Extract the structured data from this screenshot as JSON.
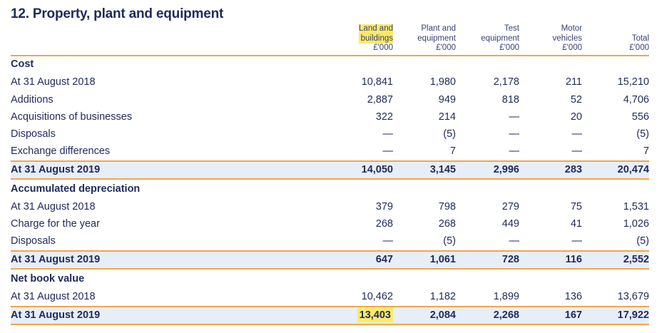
{
  "title": "12. Property, plant and equipment",
  "columns": [
    {
      "lines": [
        "Land and",
        "buildings",
        "£'000"
      ],
      "highlight": true
    },
    {
      "lines": [
        "Plant and",
        "equipment",
        "£'000"
      ],
      "highlight": false
    },
    {
      "lines": [
        "Test",
        "equipment",
        "£'000"
      ],
      "highlight": false
    },
    {
      "lines": [
        "Motor",
        "vehicles",
        "£'000"
      ],
      "highlight": false
    },
    {
      "lines": [
        "Total",
        "£'000"
      ],
      "highlight": false
    }
  ],
  "colors": {
    "text": "#1f2a5a",
    "rule": "#f0a64c",
    "total_bg": "#e8eef8",
    "highlight": "#fbea68"
  },
  "rows": [
    {
      "type": "section",
      "label": "Cost",
      "values": []
    },
    {
      "type": "normal",
      "label": "At 31 August 2018",
      "values": [
        "10,841",
        "1,980",
        "2,178",
        "211",
        "15,210"
      ]
    },
    {
      "type": "normal",
      "label": "Additions",
      "values": [
        "2,887",
        "949",
        "818",
        "52",
        "4,706"
      ]
    },
    {
      "type": "normal",
      "label": "Acquisitions of businesses",
      "values": [
        "322",
        "214",
        "—",
        "20",
        "556"
      ]
    },
    {
      "type": "normal",
      "label": "Disposals",
      "values": [
        "—",
        "(5)",
        "—",
        "—",
        "(5)"
      ]
    },
    {
      "type": "normal",
      "label": "Exchange differences",
      "values": [
        "—",
        "7",
        "—",
        "—",
        "7"
      ]
    },
    {
      "type": "total",
      "label": "At 31 August 2019",
      "values": [
        "14,050",
        "3,145",
        "2,996",
        "283",
        "20,474"
      ]
    },
    {
      "type": "section",
      "label": "Accumulated depreciation",
      "values": []
    },
    {
      "type": "normal",
      "label": "At 31 August 2018",
      "values": [
        "379",
        "798",
        "279",
        "75",
        "1,531"
      ]
    },
    {
      "type": "normal",
      "label": "Charge for the year",
      "values": [
        "268",
        "268",
        "449",
        "41",
        "1,026"
      ]
    },
    {
      "type": "normal",
      "label": "Disposals",
      "values": [
        "—",
        "(5)",
        "—",
        "—",
        "(5)"
      ]
    },
    {
      "type": "total",
      "label": "At 31 August 2019",
      "values": [
        "647",
        "1,061",
        "728",
        "116",
        "2,552"
      ]
    },
    {
      "type": "section",
      "label": "Net book value",
      "values": []
    },
    {
      "type": "normal",
      "label": "At 31 August 2018",
      "values": [
        "10,462",
        "1,182",
        "1,899",
        "136",
        "13,679"
      ]
    },
    {
      "type": "total",
      "label": "At 31 August 2019",
      "values": [
        "13,403",
        "2,084",
        "2,268",
        "167",
        "17,922"
      ],
      "highlight_first": true
    }
  ]
}
